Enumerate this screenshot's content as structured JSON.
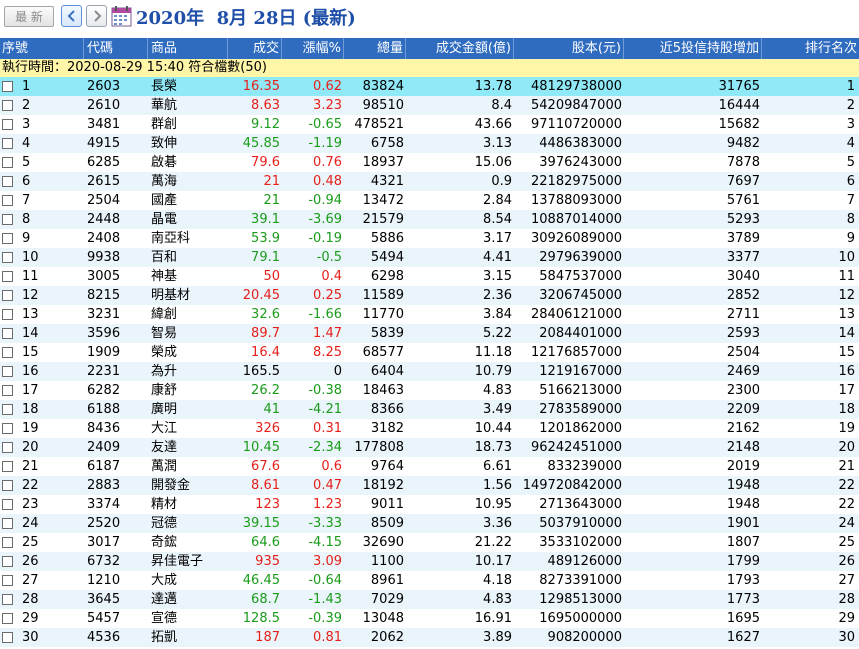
{
  "toolbar": {
    "latest_button": "最 新",
    "title": "2020年  8月 28日 (最新)"
  },
  "colors": {
    "header_bg": "#2f6cc0",
    "info_bg": "#fff6a8",
    "selected_row": "#8fe9f7",
    "up": "#e5201b",
    "down": "#1a9b1a"
  },
  "columns": [
    "序號",
    "代碼",
    "商品",
    "成交",
    "漲幅%",
    "總量",
    "成交金額(億)",
    "股本(元)",
    "近5投信持股增加",
    "排行名次"
  ],
  "info_text": "執行時間：2020-08-29 15:40 符合檔數(50)",
  "rows": [
    {
      "no": "1",
      "code": "2603",
      "name": "長榮",
      "price": "16.35",
      "chg": "0.62",
      "vol": "83824",
      "amt": "13.78",
      "cap": "48129738000",
      "inc": "31765",
      "rank": "1"
    },
    {
      "no": "2",
      "code": "2610",
      "name": "華航",
      "price": "8.63",
      "chg": "3.23",
      "vol": "98510",
      "amt": "8.4",
      "cap": "54209847000",
      "inc": "16444",
      "rank": "2"
    },
    {
      "no": "3",
      "code": "3481",
      "name": "群創",
      "price": "9.12",
      "chg": "-0.65",
      "vol": "478521",
      "amt": "43.66",
      "cap": "97110720000",
      "inc": "15682",
      "rank": "3"
    },
    {
      "no": "4",
      "code": "4915",
      "name": "致伸",
      "price": "45.85",
      "chg": "-1.19",
      "vol": "6758",
      "amt": "3.13",
      "cap": "4486383000",
      "inc": "9482",
      "rank": "4"
    },
    {
      "no": "5",
      "code": "6285",
      "name": "啟碁",
      "price": "79.6",
      "chg": "0.76",
      "vol": "18937",
      "amt": "15.06",
      "cap": "3976243000",
      "inc": "7878",
      "rank": "5"
    },
    {
      "no": "6",
      "code": "2615",
      "name": "萬海",
      "price": "21",
      "chg": "0.48",
      "vol": "4321",
      "amt": "0.9",
      "cap": "22182975000",
      "inc": "7697",
      "rank": "6"
    },
    {
      "no": "7",
      "code": "2504",
      "name": "國產",
      "price": "21",
      "chg": "-0.94",
      "vol": "13472",
      "amt": "2.84",
      "cap": "13788093000",
      "inc": "5761",
      "rank": "7"
    },
    {
      "no": "8",
      "code": "2448",
      "name": "晶電",
      "price": "39.1",
      "chg": "-3.69",
      "vol": "21579",
      "amt": "8.54",
      "cap": "10887014000",
      "inc": "5293",
      "rank": "8"
    },
    {
      "no": "9",
      "code": "2408",
      "name": "南亞科",
      "price": "53.9",
      "chg": "-0.19",
      "vol": "5886",
      "amt": "3.17",
      "cap": "30926089000",
      "inc": "3789",
      "rank": "9"
    },
    {
      "no": "10",
      "code": "9938",
      "name": "百和",
      "price": "79.1",
      "chg": "-0.5",
      "vol": "5494",
      "amt": "4.41",
      "cap": "2979639000",
      "inc": "3377",
      "rank": "10"
    },
    {
      "no": "11",
      "code": "3005",
      "name": "神基",
      "price": "50",
      "chg": "0.4",
      "vol": "6298",
      "amt": "3.15",
      "cap": "5847537000",
      "inc": "3040",
      "rank": "11"
    },
    {
      "no": "12",
      "code": "8215",
      "name": "明基材",
      "price": "20.45",
      "chg": "0.25",
      "vol": "11589",
      "amt": "2.36",
      "cap": "3206745000",
      "inc": "2852",
      "rank": "12"
    },
    {
      "no": "13",
      "code": "3231",
      "name": "緯創",
      "price": "32.6",
      "chg": "-1.66",
      "vol": "11770",
      "amt": "3.84",
      "cap": "28406121000",
      "inc": "2711",
      "rank": "13"
    },
    {
      "no": "14",
      "code": "3596",
      "name": "智易",
      "price": "89.7",
      "chg": "1.47",
      "vol": "5839",
      "amt": "5.22",
      "cap": "2084401000",
      "inc": "2593",
      "rank": "14"
    },
    {
      "no": "15",
      "code": "1909",
      "name": "榮成",
      "price": "16.4",
      "chg": "8.25",
      "vol": "68577",
      "amt": "11.18",
      "cap": "12176857000",
      "inc": "2504",
      "rank": "15"
    },
    {
      "no": "16",
      "code": "2231",
      "name": "為升",
      "price": "165.5",
      "chg": "0",
      "vol": "6404",
      "amt": "10.79",
      "cap": "1219167000",
      "inc": "2469",
      "rank": "16"
    },
    {
      "no": "17",
      "code": "6282",
      "name": "康舒",
      "price": "26.2",
      "chg": "-0.38",
      "vol": "18463",
      "amt": "4.83",
      "cap": "5166213000",
      "inc": "2300",
      "rank": "17"
    },
    {
      "no": "18",
      "code": "6188",
      "name": "廣明",
      "price": "41",
      "chg": "-4.21",
      "vol": "8366",
      "amt": "3.49",
      "cap": "2783589000",
      "inc": "2209",
      "rank": "18"
    },
    {
      "no": "19",
      "code": "8436",
      "name": "大江",
      "price": "326",
      "chg": "0.31",
      "vol": "3182",
      "amt": "10.44",
      "cap": "1201862000",
      "inc": "2162",
      "rank": "19"
    },
    {
      "no": "20",
      "code": "2409",
      "name": "友達",
      "price": "10.45",
      "chg": "-2.34",
      "vol": "177808",
      "amt": "18.73",
      "cap": "96242451000",
      "inc": "2148",
      "rank": "20"
    },
    {
      "no": "21",
      "code": "6187",
      "name": "萬潤",
      "price": "67.6",
      "chg": "0.6",
      "vol": "9764",
      "amt": "6.61",
      "cap": "833239000",
      "inc": "2019",
      "rank": "21"
    },
    {
      "no": "22",
      "code": "2883",
      "name": "開發金",
      "price": "8.61",
      "chg": "0.47",
      "vol": "18192",
      "amt": "1.56",
      "cap": "149720842000",
      "inc": "1948",
      "rank": "22"
    },
    {
      "no": "23",
      "code": "3374",
      "name": "精材",
      "price": "123",
      "chg": "1.23",
      "vol": "9011",
      "amt": "10.95",
      "cap": "2713643000",
      "inc": "1948",
      "rank": "22"
    },
    {
      "no": "24",
      "code": "2520",
      "name": "冠德",
      "price": "39.15",
      "chg": "-3.33",
      "vol": "8509",
      "amt": "3.36",
      "cap": "5037910000",
      "inc": "1901",
      "rank": "24"
    },
    {
      "no": "25",
      "code": "3017",
      "name": "奇鋐",
      "price": "64.6",
      "chg": "-4.15",
      "vol": "32690",
      "amt": "21.22",
      "cap": "3533102000",
      "inc": "1807",
      "rank": "25"
    },
    {
      "no": "26",
      "code": "6732",
      "name": "昇佳電子",
      "price": "935",
      "chg": "3.09",
      "vol": "1100",
      "amt": "10.17",
      "cap": "489126000",
      "inc": "1799",
      "rank": "26"
    },
    {
      "no": "27",
      "code": "1210",
      "name": "大成",
      "price": "46.45",
      "chg": "-0.64",
      "vol": "8961",
      "amt": "4.18",
      "cap": "8273391000",
      "inc": "1793",
      "rank": "27"
    },
    {
      "no": "28",
      "code": "3645",
      "name": "達邁",
      "price": "68.7",
      "chg": "-1.43",
      "vol": "7029",
      "amt": "4.83",
      "cap": "1298513000",
      "inc": "1773",
      "rank": "28"
    },
    {
      "no": "29",
      "code": "5457",
      "name": "宣德",
      "price": "128.5",
      "chg": "-0.39",
      "vol": "13048",
      "amt": "16.91",
      "cap": "1695000000",
      "inc": "1695",
      "rank": "29"
    },
    {
      "no": "30",
      "code": "4536",
      "name": "拓凱",
      "price": "187",
      "chg": "0.81",
      "vol": "2062",
      "amt": "3.89",
      "cap": "908200000",
      "inc": "1627",
      "rank": "30"
    }
  ]
}
